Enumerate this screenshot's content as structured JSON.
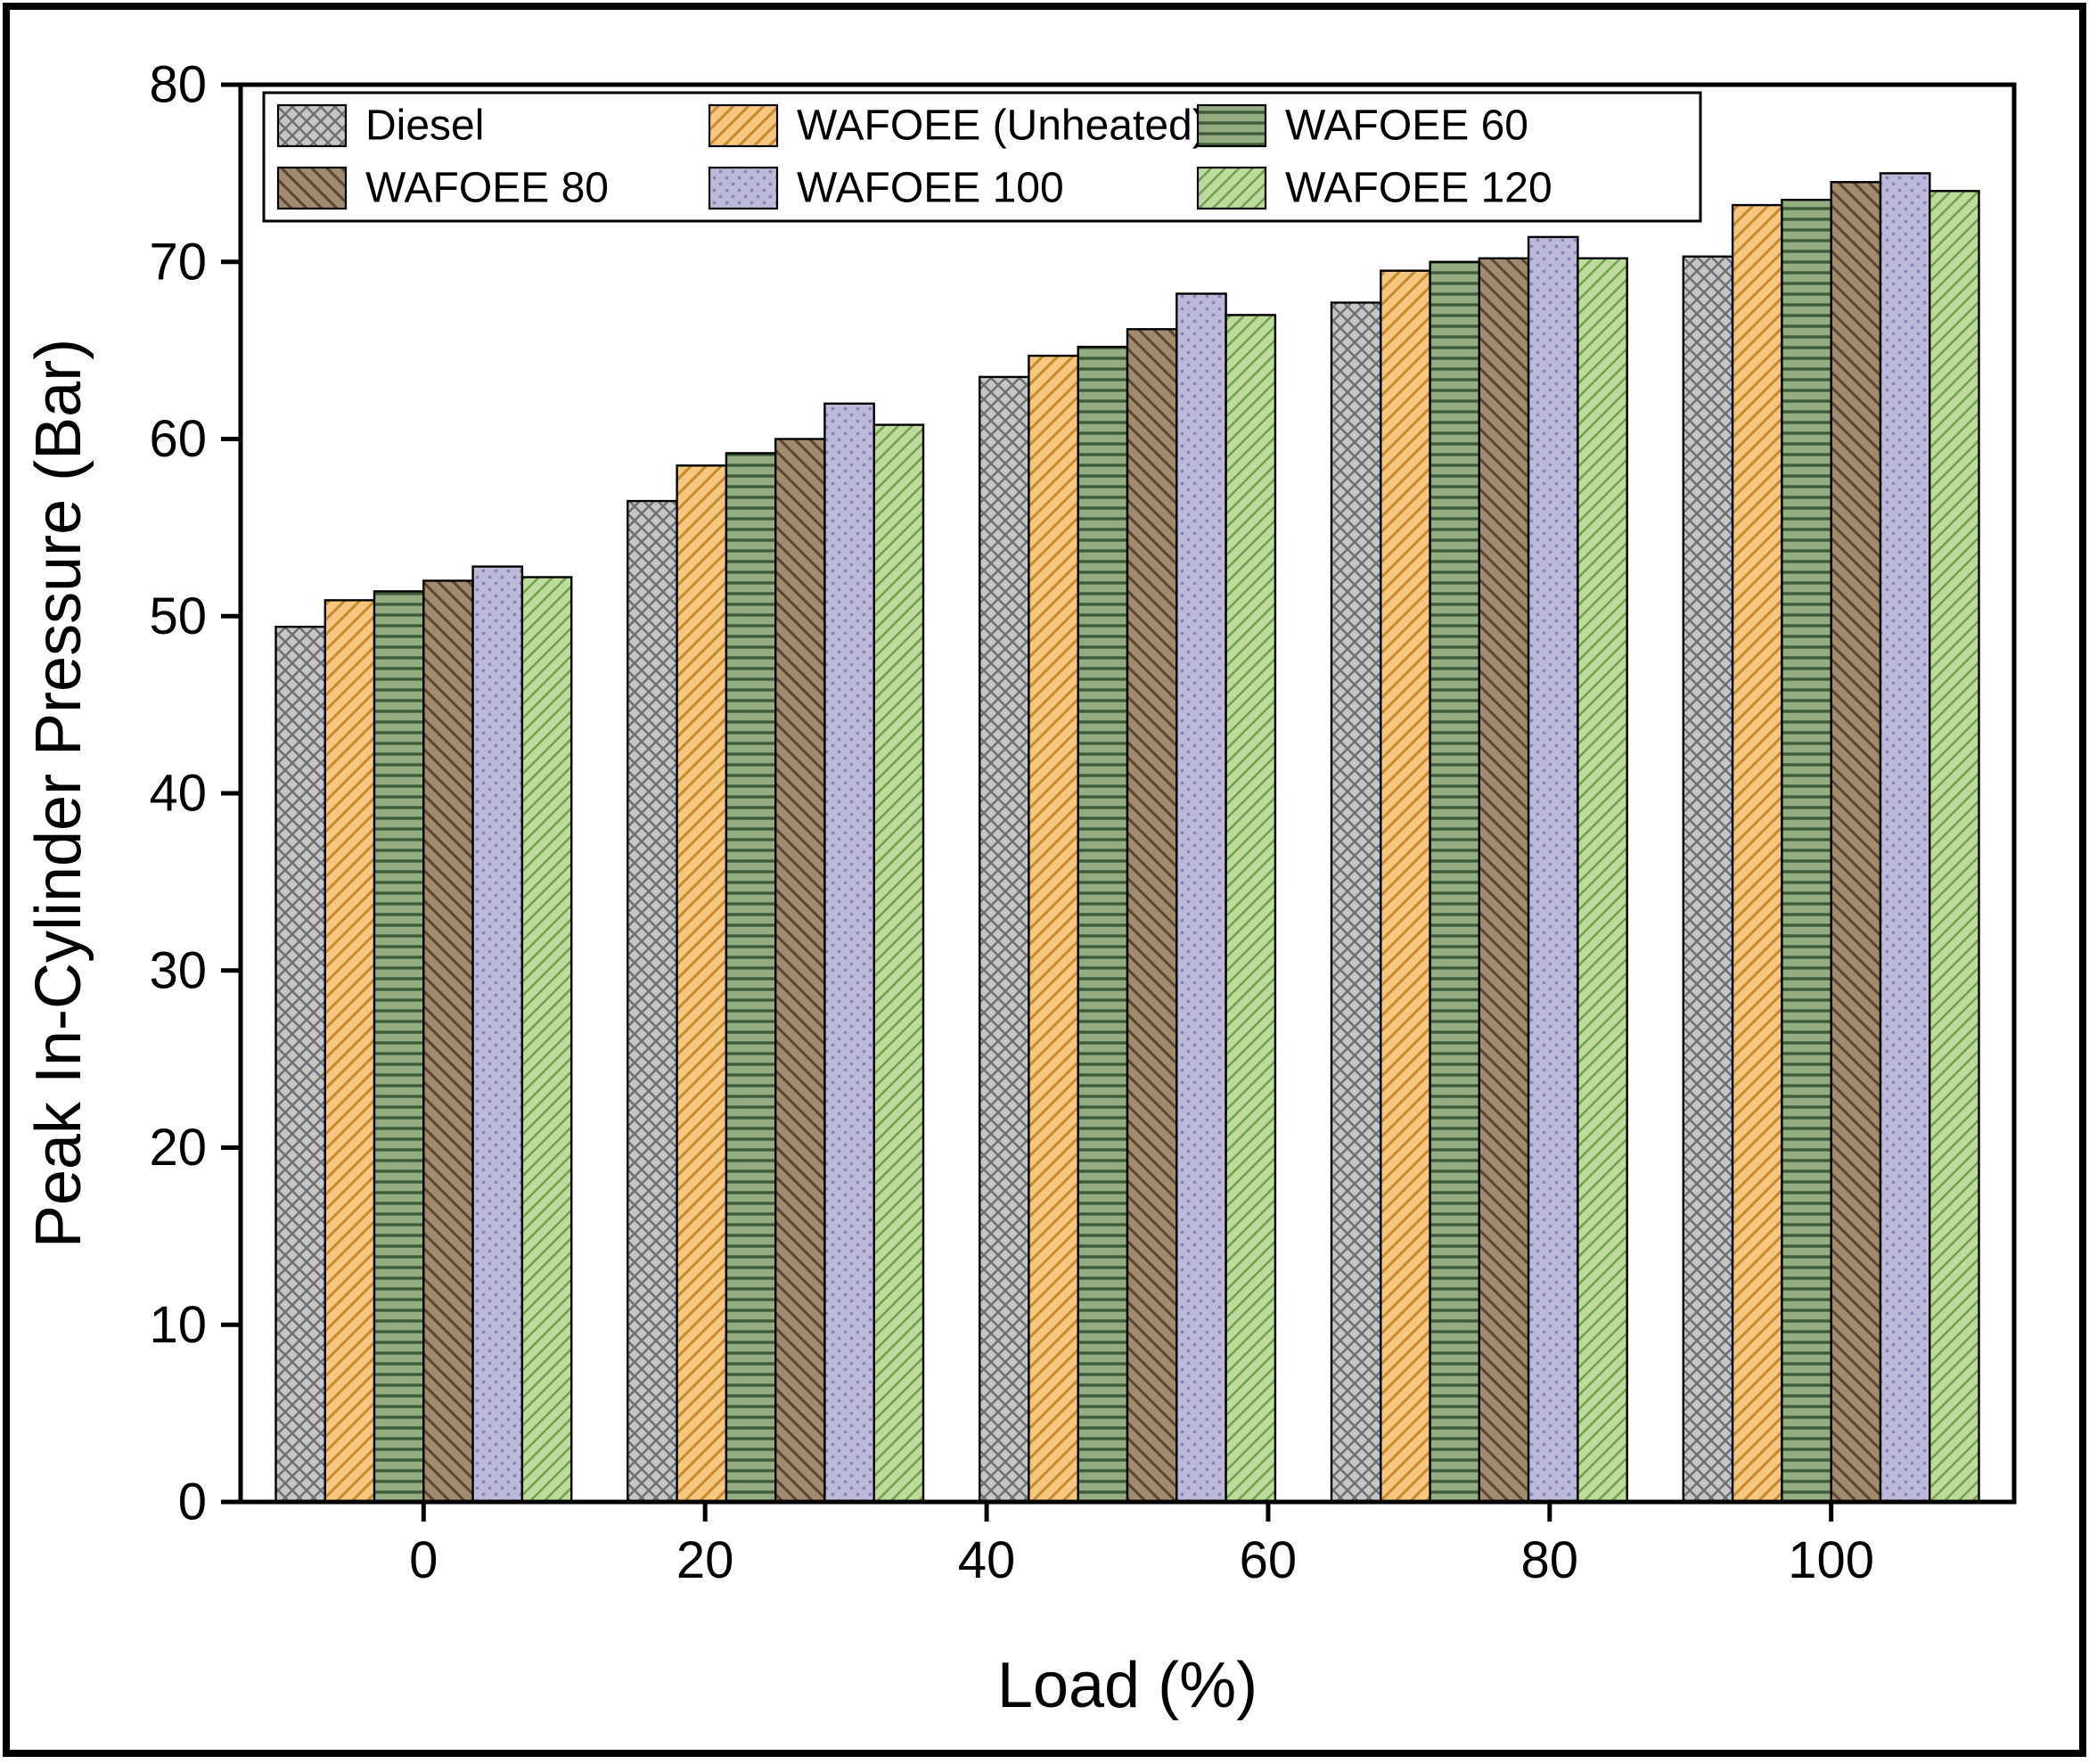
{
  "figure": {
    "background": "#ffffff",
    "border_color": "#000000"
  },
  "chart_data": {
    "type": "bar",
    "title": "",
    "xlabel": "Load (%)",
    "ylabel": "Peak In-Cylinder Pressure (Bar)",
    "xlim": [
      -13,
      113
    ],
    "ylim": [
      0,
      80
    ],
    "x_ticks": [
      0,
      20,
      40,
      60,
      80,
      100
    ],
    "y_ticks": [
      0,
      10,
      20,
      30,
      40,
      50,
      60,
      70,
      80
    ],
    "group_centers": [
      0,
      25,
      50,
      75,
      100
    ],
    "grid": false,
    "legend_position": "top-inside",
    "legend_columns": 3,
    "series": [
      {
        "name": "Diesel",
        "pattern": "crosshatch",
        "fill": "#c6c6c6",
        "hatch": "#6f6f6f",
        "values": [
          49.4,
          56.5,
          63.5,
          67.7,
          70.3
        ]
      },
      {
        "name": "WAFOEE (Unheated)",
        "pattern": "diag-up",
        "fill": "#f6c87f",
        "hatch": "#c68a2e",
        "values": [
          50.9,
          58.5,
          64.7,
          69.5,
          73.2
        ]
      },
      {
        "name": "WAFOEE 60",
        "pattern": "horiz",
        "fill": "#94ad80",
        "hatch": "#3f5c38",
        "values": [
          51.4,
          59.2,
          65.2,
          70.0,
          73.5
        ]
      },
      {
        "name": "WAFOEE 80",
        "pattern": "diag-down",
        "fill": "#a18a6d",
        "hatch": "#5a4632",
        "values": [
          52.0,
          60.0,
          66.2,
          70.2,
          74.5
        ]
      },
      {
        "name": "WAFOEE 100",
        "pattern": "dots",
        "fill": "#bdb9db",
        "hatch": "#8884b5",
        "values": [
          52.8,
          62.0,
          68.2,
          71.4,
          75.0
        ]
      },
      {
        "name": "WAFOEE 120",
        "pattern": "diag-up-light",
        "fill": "#bedb9d",
        "hatch": "#6f9c47",
        "values": [
          52.2,
          60.8,
          67.0,
          70.2,
          74.0
        ]
      }
    ]
  }
}
